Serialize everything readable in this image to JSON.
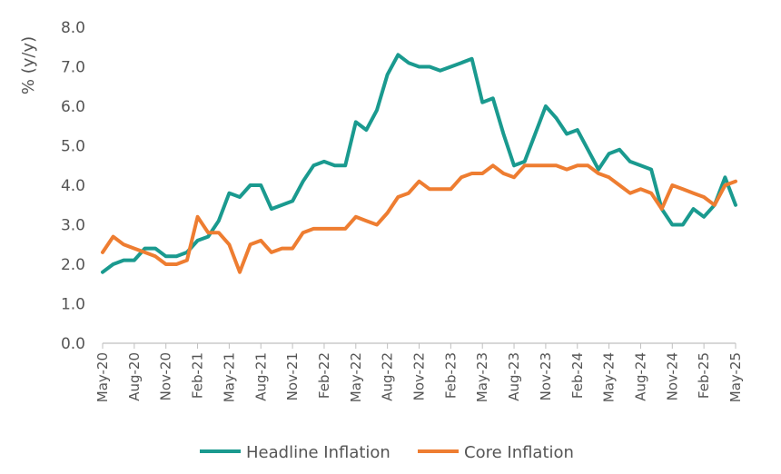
{
  "chart_data": {
    "type": "line",
    "ylabel": "% (y/y)",
    "ylim": [
      0,
      8
    ],
    "yticks": [
      "0.0",
      "1.0",
      "2.0",
      "3.0",
      "4.0",
      "5.0",
      "6.0",
      "7.0",
      "8.0"
    ],
    "grid": false,
    "legend_position": "bottom",
    "x": [
      "May-20",
      "Jun-20",
      "Jul-20",
      "Aug-20",
      "Sep-20",
      "Oct-20",
      "Nov-20",
      "Dec-20",
      "Jan-21",
      "Feb-21",
      "Mar-21",
      "Apr-21",
      "May-21",
      "Jun-21",
      "Jul-21",
      "Aug-21",
      "Sep-21",
      "Oct-21",
      "Nov-21",
      "Dec-21",
      "Jan-22",
      "Feb-22",
      "Mar-22",
      "Apr-22",
      "May-22",
      "Jun-22",
      "Jul-22",
      "Aug-22",
      "Sep-22",
      "Oct-22",
      "Nov-22",
      "Dec-22",
      "Jan-23",
      "Feb-23",
      "Mar-23",
      "Apr-23",
      "May-23",
      "Jun-23",
      "Jul-23",
      "Aug-23",
      "Sep-23",
      "Oct-23",
      "Nov-23",
      "Dec-23",
      "Jan-24",
      "Feb-24",
      "Mar-24",
      "Apr-24",
      "May-24",
      "Jun-24",
      "Jul-24",
      "Aug-24",
      "Sep-24",
      "Oct-24",
      "Nov-24",
      "Dec-24",
      "Jan-25",
      "Feb-25",
      "Mar-25",
      "Apr-25",
      "May-25"
    ],
    "xticks": [
      "May-20",
      "Aug-20",
      "Nov-20",
      "Feb-21",
      "May-21",
      "Aug-21",
      "Nov-21",
      "Feb-22",
      "May-22",
      "Aug-22",
      "Nov-22",
      "Feb-23",
      "May-23",
      "Aug-23",
      "Nov-23",
      "Feb-24",
      "May-24",
      "Aug-24",
      "Nov-24",
      "Feb-25",
      "May-25"
    ],
    "series": [
      {
        "name": "Headline Inflation",
        "color": "#1a9a8f",
        "values": [
          1.8,
          2.0,
          2.1,
          2.1,
          2.4,
          2.4,
          2.2,
          2.2,
          2.3,
          2.6,
          2.7,
          3.1,
          3.8,
          3.7,
          4.0,
          4.0,
          3.4,
          3.5,
          3.6,
          4.1,
          4.5,
          4.6,
          4.5,
          4.5,
          5.6,
          5.4,
          5.9,
          6.8,
          7.3,
          7.1,
          7.0,
          7.0,
          6.9,
          7.0,
          7.1,
          7.2,
          6.1,
          6.2,
          5.3,
          4.5,
          4.6,
          5.3,
          6.0,
          5.7,
          5.3,
          5.4,
          4.9,
          4.4,
          4.8,
          4.9,
          4.6,
          4.5,
          4.4,
          3.4,
          3.0,
          3.0,
          3.4,
          3.2,
          3.5,
          4.2,
          3.5
        ]
      },
      {
        "name": "Core Inflation",
        "color": "#ee7d31",
        "values": [
          2.3,
          2.7,
          2.5,
          2.4,
          2.3,
          2.2,
          2.0,
          2.0,
          2.1,
          3.2,
          2.8,
          2.8,
          2.5,
          1.8,
          2.5,
          2.6,
          2.3,
          2.4,
          2.4,
          2.8,
          2.9,
          2.9,
          2.9,
          2.9,
          3.2,
          3.1,
          3.0,
          3.3,
          3.7,
          3.8,
          4.1,
          3.9,
          3.9,
          3.9,
          4.2,
          4.3,
          4.3,
          4.5,
          4.3,
          4.2,
          4.5,
          4.5,
          4.5,
          4.5,
          4.4,
          4.5,
          4.5,
          4.3,
          4.2,
          4.0,
          3.8,
          3.9,
          3.8,
          3.4,
          4.0,
          3.9,
          3.8,
          3.7,
          3.5,
          4.0,
          4.1
        ]
      }
    ]
  }
}
